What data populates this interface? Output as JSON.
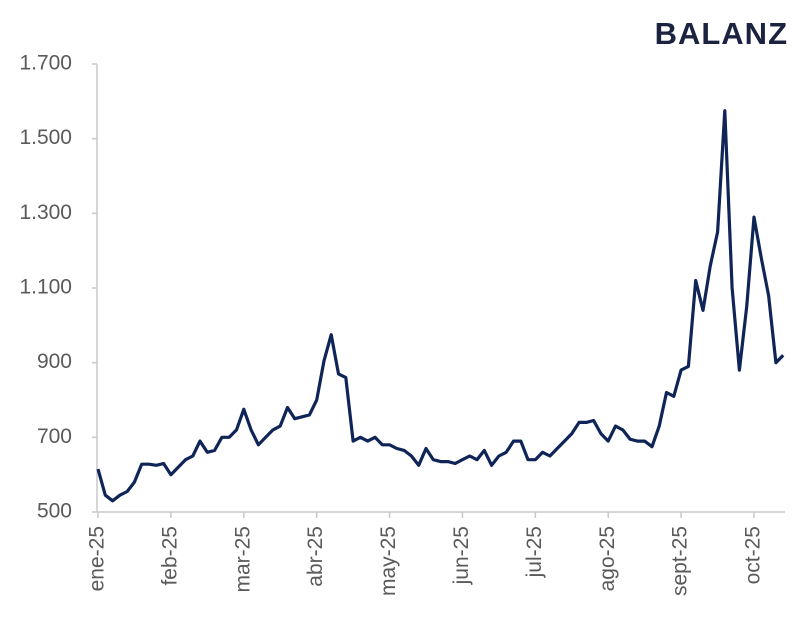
{
  "chart_data": {
    "type": "line",
    "title": "BALANZ",
    "categories": [
      "ene-25",
      null,
      null,
      null,
      null,
      null,
      null,
      null,
      null,
      null,
      "feb-25",
      null,
      null,
      null,
      null,
      null,
      null,
      null,
      null,
      null,
      "mar-25",
      null,
      null,
      null,
      null,
      null,
      null,
      null,
      null,
      null,
      "abr-25",
      null,
      null,
      null,
      null,
      null,
      null,
      null,
      null,
      null,
      "may-25",
      null,
      null,
      null,
      null,
      null,
      null,
      null,
      null,
      null,
      "jun-25",
      null,
      null,
      null,
      null,
      null,
      null,
      null,
      null,
      null,
      "jul-25",
      null,
      null,
      null,
      null,
      null,
      null,
      null,
      null,
      null,
      "ago-25",
      null,
      null,
      null,
      null,
      null,
      null,
      null,
      null,
      null,
      "sept-25",
      null,
      null,
      null,
      null,
      null,
      null,
      null,
      null,
      null,
      "oct-25",
      null,
      null,
      null,
      null
    ],
    "values": [
      615,
      545,
      530,
      545,
      555,
      580,
      628,
      628,
      625,
      630,
      600,
      620,
      640,
      650,
      690,
      660,
      665,
      700,
      700,
      720,
      775,
      720,
      680,
      700,
      720,
      730,
      780,
      750,
      755,
      760,
      800,
      905,
      975,
      870,
      860,
      690,
      700,
      690,
      700,
      680,
      680,
      670,
      665,
      650,
      625,
      670,
      640,
      635,
      635,
      630,
      640,
      650,
      640,
      665,
      625,
      650,
      660,
      690,
      690,
      640,
      640,
      660,
      650,
      670,
      690,
      710,
      740,
      740,
      745,
      710,
      690,
      730,
      720,
      695,
      690,
      690,
      675,
      730,
      820,
      810,
      880,
      890,
      1120,
      1040,
      1160,
      1250,
      1575,
      1100,
      880,
      1050,
      1290,
      1180,
      1080,
      900,
      920
    ],
    "color": "#0f2457",
    "ylim": [
      500,
      1700
    ],
    "yticks": [
      500,
      700,
      900,
      {
        "value": 1100,
        "label": "1.100"
      },
      {
        "value": 1300,
        "label": "1.300"
      },
      {
        "value": 1500,
        "label": "1.500"
      },
      {
        "value": 1700,
        "label": "1.700"
      }
    ]
  }
}
